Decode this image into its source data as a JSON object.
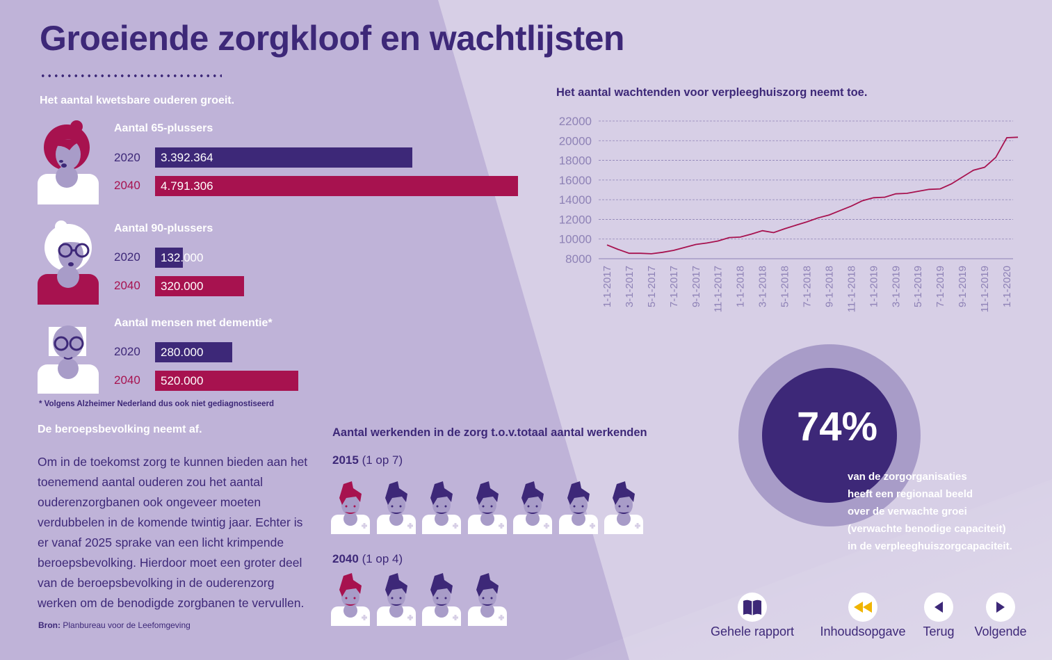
{
  "title": "Groeiende zorgkloof en wachtlijsten",
  "elderly": {
    "heading": "Het aantal kwetsbare ouderen groeit.",
    "groups": [
      {
        "label": "Aantal 65-plussers",
        "rows": [
          {
            "year": "2020",
            "value_text": "3.392.364",
            "value": 3392364
          },
          {
            "year": "2040",
            "value_text": "4.791.306",
            "value": 4791306
          }
        ]
      },
      {
        "label": "Aantal 90-plussers",
        "rows": [
          {
            "year": "2020",
            "value_text": "132.000",
            "value": 132000
          },
          {
            "year": "2040",
            "value_text": "320.000",
            "value": 320000
          }
        ]
      },
      {
        "label": "Aantal mensen met dementie*",
        "rows": [
          {
            "year": "2020",
            "value_text": "280.000",
            "value": 280000
          },
          {
            "year": "2040",
            "value_text": "520.000",
            "value": 520000
          }
        ]
      }
    ],
    "footnote": "* Volgens Alzheimer Nederland dus ook niet gediagnostiseerd"
  },
  "workforce": {
    "heading": "De beroepsbevolking neemt af.",
    "text": "Om in de toekomst zorg te kunnen bieden aan het toenemend aantal ouderen zou het aantal ouderenzorgbanen ook ongeveer moeten verdubbelen in de komende twintig jaar. Echter is er vanaf 2025 sprake van een licht krimpende beroepsbevolking. Hierdoor moet een groter deel van de beroepsbevolking in de ouderenzorg werken om de benodigde zorgbanen te vervullen.",
    "source_label": "Bron:",
    "source": "Planbureau voor de Leefomgeving"
  },
  "workers": {
    "title": "Aantal werkenden in de zorg t.o.v.totaal aantal werkenden",
    "rows": [
      {
        "year": "2015",
        "ratio": "(1 op 7)",
        "count": 7,
        "highlighted": 1
      },
      {
        "year": "2040",
        "ratio": "(1 op 4)",
        "count": 4,
        "highlighted": 1
      }
    ]
  },
  "chart_data": {
    "type": "line",
    "title": "Het aantal wachtenden voor verpleeghuiszorg neemt toe.",
    "xlabel": "",
    "ylabel": "",
    "ylim": [
      8000,
      22000
    ],
    "y_ticks": [
      8000,
      10000,
      12000,
      14000,
      16000,
      18000,
      20000,
      22000
    ],
    "x_tick_labels": [
      "1-1-2017",
      "3-1-2017",
      "5-1-2017",
      "7-1-2017",
      "9-1-2017",
      "11-1-2017",
      "1-1-2018",
      "3-1-2018",
      "5-1-2018",
      "7-1-2018",
      "9-1-2018",
      "11-1-2018",
      "1-1-2019",
      "3-1-2019",
      "5-1-2019",
      "7-1-2019",
      "9-1-2019",
      "11-1-2019",
      "1-1-2020"
    ],
    "grid": true,
    "line_color": "#a7124f",
    "series": [
      {
        "values": [
          [
            "1-1-2017",
            9400
          ],
          [
            "2-1-2017",
            8950
          ],
          [
            "3-1-2017",
            8550
          ],
          [
            "4-1-2017",
            8550
          ],
          [
            "5-1-2017",
            8500
          ],
          [
            "6-1-2017",
            8650
          ],
          [
            "7-1-2017",
            8850
          ],
          [
            "8-1-2017",
            9150
          ],
          [
            "9-1-2017",
            9450
          ],
          [
            "10-1-2017",
            9600
          ],
          [
            "11-1-2017",
            9800
          ],
          [
            "12-1-2017",
            10150
          ],
          [
            "1-1-2018",
            10200
          ],
          [
            "2-1-2018",
            10500
          ],
          [
            "3-1-2018",
            10850
          ],
          [
            "4-1-2018",
            10650
          ],
          [
            "5-1-2018",
            11050
          ],
          [
            "6-1-2018",
            11400
          ],
          [
            "7-1-2018",
            11750
          ],
          [
            "8-1-2018",
            12150
          ],
          [
            "9-1-2018",
            12450
          ],
          [
            "10-1-2018",
            12900
          ],
          [
            "11-1-2018",
            13350
          ],
          [
            "12-1-2018",
            13900
          ],
          [
            "1-1-2019",
            14200
          ],
          [
            "2-1-2019",
            14250
          ],
          [
            "3-1-2019",
            14600
          ],
          [
            "4-1-2019",
            14650
          ],
          [
            "5-1-2019",
            14850
          ],
          [
            "6-1-2019",
            15050
          ],
          [
            "7-1-2019",
            15100
          ],
          [
            "8-1-2019",
            15600
          ],
          [
            "9-1-2019",
            16300
          ],
          [
            "10-1-2019",
            17000
          ],
          [
            "11-1-2019",
            17300
          ],
          [
            "12-1-2019",
            18300
          ],
          [
            "1-1-2020",
            20300
          ],
          [
            "2-1-2020",
            20350
          ]
        ]
      }
    ]
  },
  "stat": {
    "value": "74%",
    "lines": [
      "van de zorgorganisaties",
      "heeft een regionaal beeld",
      "over de verwachte groei",
      "(verwachte benodige capaciteit)",
      "in de verpleeghuiszorgcapaciteit."
    ]
  },
  "nav": {
    "full_report": "Gehele rapport",
    "contents": "Inhoudsopgave",
    "back": "Terug",
    "next": "Volgende"
  },
  "colors": {
    "purple": "#3d2878",
    "magenta": "#a7124f",
    "bg_dark": "#bfb3d8",
    "bg_light": "#d7cfe6",
    "accent_yellow": "#f0b400"
  }
}
